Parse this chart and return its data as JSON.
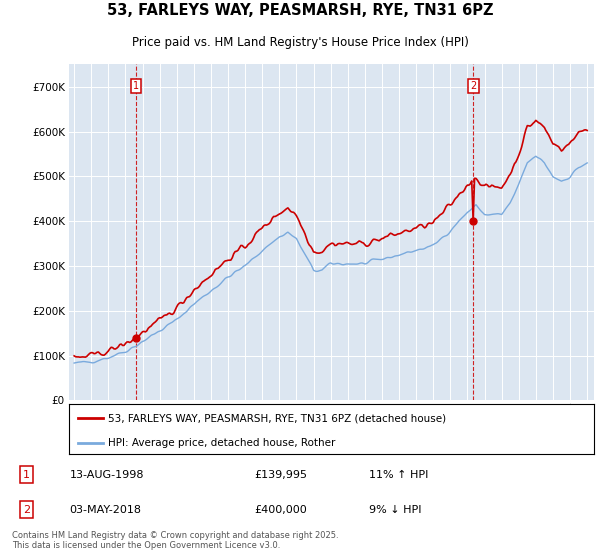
{
  "title": "53, FARLEYS WAY, PEASMARSH, RYE, TN31 6PZ",
  "subtitle": "Price paid vs. HM Land Registry's House Price Index (HPI)",
  "legend_line1": "53, FARLEYS WAY, PEASMARSH, RYE, TN31 6PZ (detached house)",
  "legend_line2": "HPI: Average price, detached house, Rother",
  "footer": "Contains HM Land Registry data © Crown copyright and database right 2025.\nThis data is licensed under the Open Government Licence v3.0.",
  "sale1_label": "1",
  "sale1_date": "13-AUG-1998",
  "sale1_price": "£139,995",
  "sale1_hpi": "11% ↑ HPI",
  "sale2_label": "2",
  "sale2_date": "03-MAY-2018",
  "sale2_price": "£400,000",
  "sale2_hpi": "9% ↓ HPI",
  "red_color": "#cc0000",
  "blue_color": "#7aaadd",
  "dashed_color": "#cc0000",
  "bg_color": "#dce6f1",
  "ylim": [
    0,
    750000
  ],
  "yticks": [
    0,
    100000,
    200000,
    300000,
    400000,
    500000,
    600000,
    700000
  ],
  "sale1_x": 1998.62,
  "sale1_y": 139995,
  "sale2_x": 2018.34,
  "sale2_y": 400000,
  "xmin": 1994.7,
  "xmax": 2025.4
}
